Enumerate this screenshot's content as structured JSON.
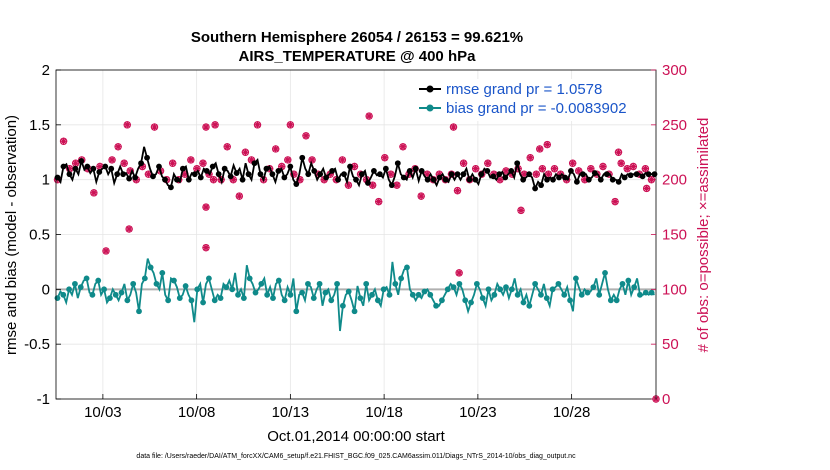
{
  "chart_data": {
    "type": "line",
    "title": "Southern Hemisphere 26054 / 26153 = 99.621%",
    "subtitle": "AIRS_TEMPERATURE @ 400 hPa",
    "xlabel": "Oct.01,2014 00:00:00 start",
    "ylabel_left": "rmse and bias (model - observation)",
    "ylabel_right": "# of obs: o=possible; ×=assimilated",
    "xlim": [
      0,
      32
    ],
    "ylim_left": [
      -1,
      2
    ],
    "ylim_right": [
      0,
      300
    ],
    "x_ticks": [
      2.5,
      7.5,
      12.5,
      17.5,
      22.5,
      27.5
    ],
    "x_tick_labels": [
      "10/03",
      "10/08",
      "10/13",
      "10/18",
      "10/23",
      "10/28"
    ],
    "y_left_ticks": [
      "-1",
      "-0.5",
      "0",
      "0.5",
      "1",
      "1.5",
      "2"
    ],
    "y_right_ticks": [
      "0",
      "50",
      "100",
      "150",
      "200",
      "250",
      "300"
    ],
    "grid": true,
    "legend_position": "top-right",
    "colors": {
      "rmse": "#000000",
      "bias": "#0f8a8a",
      "obs": "#cc1155",
      "zero_line": "#b0b0b0",
      "legend_text": "#1a55c9"
    },
    "series": [
      {
        "name": "rmse grand pr = 1.0578",
        "values": [
          1.02,
          0.98,
          1.12,
          1.14,
          1.05,
          1.0,
          1.1,
          1.05,
          1.17,
          1.09,
          1.12,
          1.06,
          1.1,
          0.98,
          1.07,
          1.1,
          1.12,
          1.05,
          1.1,
          0.97,
          1.05,
          1.12,
          1.05,
          1.06,
          1.01,
          1.08,
          1.02,
          1.1,
          1.15,
          1.3,
          1.2,
          1.1,
          1.03,
          1.05,
          1.12,
          1.03,
          1.0,
          0.95,
          0.93,
          1.05,
          1.0,
          0.98,
          1.1,
          1.12,
          1.0,
          1.06,
          1.05,
          1.08,
          1.02,
          1.1,
          1.08,
          1.05,
          1.12,
          1.15,
          1.05,
          0.98,
          1.1,
          1.08,
          1.03,
          1.13,
          1.06,
          1.1,
          1.0,
          1.15,
          1.05,
          1.0,
          1.15,
          1.18,
          1.05,
          1.0,
          1.1,
          1.12,
          1.05,
          0.98,
          1.08,
          1.1,
          1.02,
          1.05,
          1.12,
          1.0,
          0.96,
          1.05,
          1.2,
          1.1,
          1.05,
          1.15,
          1.08,
          1.0,
          1.05,
          1.1,
          1.02,
          1.05,
          1.08,
          1.1,
          1.0,
          1.05,
          1.05,
          0.98,
          1.12,
          1.03,
          1.0,
          0.95,
          1.05,
          1.08,
          0.97,
          1.02,
          1.08,
          1.04,
          1.05,
          1.02,
          1.1,
          1.0,
          0.95,
          1.03,
          1.15,
          1.05,
          1.02,
          1.0,
          1.08,
          1.02,
          1.1,
          0.99,
          1.08,
          1.03,
          1.0,
          1.05,
          1.0,
          0.95,
          1.02,
          1.05,
          1.0,
          0.98,
          1.05,
          1.0,
          1.05,
          1.0,
          1.05,
          1.1,
          1.0,
          1.05,
          1.0,
          0.96,
          1.05,
          1.1,
          1.08,
          1.02,
          1.03,
          1.0,
          1.05,
          1.07,
          1.02,
          1.05,
          1.08,
          1.02,
          1.15,
          1.05,
          1.0,
          1.02,
          1.05,
          1.02,
          0.92,
          0.98,
          0.95,
          1.05,
          1.0,
          1.02,
          1.0,
          1.05,
          1.02,
          1.05,
          1.02,
          1.0,
          1.08,
          1.05,
          0.98,
          1.05,
          1.05,
          1.05,
          1.0,
          1.02,
          1.06,
          1.05,
          1.0,
          1.05,
          1.05,
          1.05,
          1.0,
          1.0,
          0.98,
          1.05,
          1.02,
          1.05,
          1.04,
          1.05,
          1.05,
          1.05,
          1.03,
          1.06,
          1.05,
          1.05,
          1.05
        ]
      },
      {
        "name": "bias grand pr = -0.0083902",
        "values": [
          -0.08,
          -0.02,
          -0.05,
          -0.12,
          0.0,
          -0.05,
          0.05,
          -0.08,
          0.02,
          0.08,
          0.1,
          -0.03,
          -0.05,
          0.05,
          0.08,
          -0.05,
          0.0,
          -0.12,
          -0.08,
          0.0,
          -0.05,
          -0.1,
          -0.03,
          0.05,
          -0.1,
          -0.05,
          0.05,
          -0.03,
          -0.2,
          0.05,
          0.1,
          0.28,
          0.2,
          0.15,
          0.05,
          0.0,
          0.15,
          -0.05,
          -0.1,
          0.1,
          0.08,
          0.02,
          -0.08,
          -0.05,
          0.03,
          -0.05,
          -0.1,
          -0.3,
          0.0,
          0.05,
          -0.12,
          0.05,
          0.1,
          0.0,
          -0.1,
          -0.05,
          -0.08,
          0.05,
          0.02,
          0.08,
          0.0,
          0.15,
          -0.05,
          0.0,
          -0.08,
          0.22,
          0.1,
          0.05,
          -0.03,
          0.0,
          0.05,
          0.1,
          -0.05,
          0.02,
          -0.08,
          0.05,
          0.08,
          -0.05,
          -0.1,
          0.02,
          -0.05,
          0.1,
          -0.2,
          -0.05,
          -0.03,
          -0.1,
          0.05,
          0.02,
          -0.08,
          0.0,
          0.05,
          -0.15,
          -0.03,
          0.0,
          -0.1,
          -0.05,
          0.05,
          -0.38,
          -0.15,
          -0.05,
          -0.02,
          -0.1,
          -0.2,
          0.03,
          -0.08,
          -0.15,
          0.05,
          -0.1,
          -0.05,
          0.0,
          -0.1,
          -0.15,
          0.0,
          0.02,
          -0.05,
          0.25,
          0.05,
          -0.05,
          0.1,
          0.18,
          0.2,
          0.0,
          -0.05,
          -0.1,
          -0.05,
          -0.08,
          -0.02,
          0.0,
          -0.05,
          -0.1,
          -0.15,
          -0.15,
          -0.1,
          -0.05,
          0.0,
          0.05,
          0.02,
          -0.05,
          0.05,
          0.0,
          -0.1,
          -0.2,
          -0.12,
          -0.05,
          0.05,
          0.0,
          -0.08,
          -0.15,
          0.0,
          -0.1,
          -0.05,
          0.05,
          0.0,
          -0.05,
          0.02,
          -0.08,
          0.0,
          0.1,
          -0.05,
          0.0,
          -0.12,
          -0.05,
          -0.15,
          -0.05,
          0.05,
          0.0,
          -0.05,
          0.05,
          -0.08,
          -0.15,
          0.0,
          0.02,
          0.05,
          0.0,
          -0.05,
          0.02,
          -0.1,
          -0.2,
          0.1,
          0.02,
          -0.05,
          0.0,
          -0.03,
          -0.02,
          0.02,
          0.1,
          -0.05,
          0.05,
          0.15,
          0.0,
          -0.1,
          -0.05,
          -0.1,
          0.0,
          0.05,
          -0.05,
          0.08,
          -0.05,
          0.02,
          0.1,
          -0.05,
          -0.05,
          -0.03,
          -0.05,
          -0.03,
          -0.05
        ]
      }
    ],
    "obs_counts": [
      200,
      212,
      235,
      225,
      210,
      205,
      215,
      202,
      218,
      225,
      210,
      195,
      188,
      205,
      212,
      200,
      135,
      195,
      218,
      242,
      230,
      205,
      215,
      195,
      208,
      195,
      200,
      190,
      212,
      220,
      205,
      218,
      248,
      230,
      208,
      170,
      200,
      245,
      215,
      205,
      200,
      212,
      205,
      195,
      218,
      225,
      210,
      200,
      215,
      200,
      205,
      230,
      250,
      212,
      200,
      195,
      230,
      220,
      200,
      205,
      185,
      212,
      225,
      205,
      218,
      200,
      250,
      230,
      200,
      212,
      210,
      215,
      228,
      205,
      212,
      190,
      218,
      225,
      205,
      228,
      200,
      212,
      240,
      225,
      218,
      195,
      205,
      210,
      200,
      220,
      205,
      212,
      200,
      190,
      218,
      180,
      195,
      202,
      212,
      230,
      205,
      218,
      200,
      225,
      195,
      205,
      180,
      212,
      220,
      200,
      205,
      210,
      195,
      218,
      230,
      220,
      205,
      200,
      210,
      200,
      185,
      212,
      205,
      220,
      200,
      215,
      205,
      212,
      200,
      210,
      205,
      218,
      190,
      200,
      215,
      220,
      200,
      205,
      210,
      200,
      205,
      195,
      215,
      220,
      205,
      212,
      200,
      240,
      208,
      215,
      205,
      200,
      210,
      200,
      205,
      215,
      220,
      200,
      205,
      235,
      210,
      200,
      205,
      215,
      210,
      220,
      205,
      212,
      200,
      225,
      215,
      205,
      208,
      218,
      200,
      215,
      210,
      215,
      205,
      230,
      212,
      200,
      205,
      210,
      180,
      200,
      215,
      205,
      210,
      205,
      212,
      200,
      205,
      195,
      210,
      205,
      200,
      205
    ],
    "obs_outliers": [
      [
        3.8,
        250
      ],
      [
        3.9,
        155
      ],
      [
        8.0,
        248
      ],
      [
        8.0,
        175
      ],
      [
        8.4,
        200
      ],
      [
        8.0,
        138
      ],
      [
        12.5,
        250
      ],
      [
        16.7,
        258
      ],
      [
        21.2,
        248
      ],
      [
        21.5,
        115
      ],
      [
        25.0,
        260
      ],
      [
        25.8,
        228
      ],
      [
        26.2,
        232
      ],
      [
        24.8,
        172
      ],
      [
        30.0,
        225
      ],
      [
        31.5,
        192
      ],
      [
        32.0,
        0
      ]
    ],
    "footer": "data file: /Users/raeder/DAI/ATM_forcXX/CAM6_setup/f.e21.FHIST_BGC.f09_025.CAM6assim.011/Diags_NTrS_2014-10/obs_diag_output.nc"
  }
}
